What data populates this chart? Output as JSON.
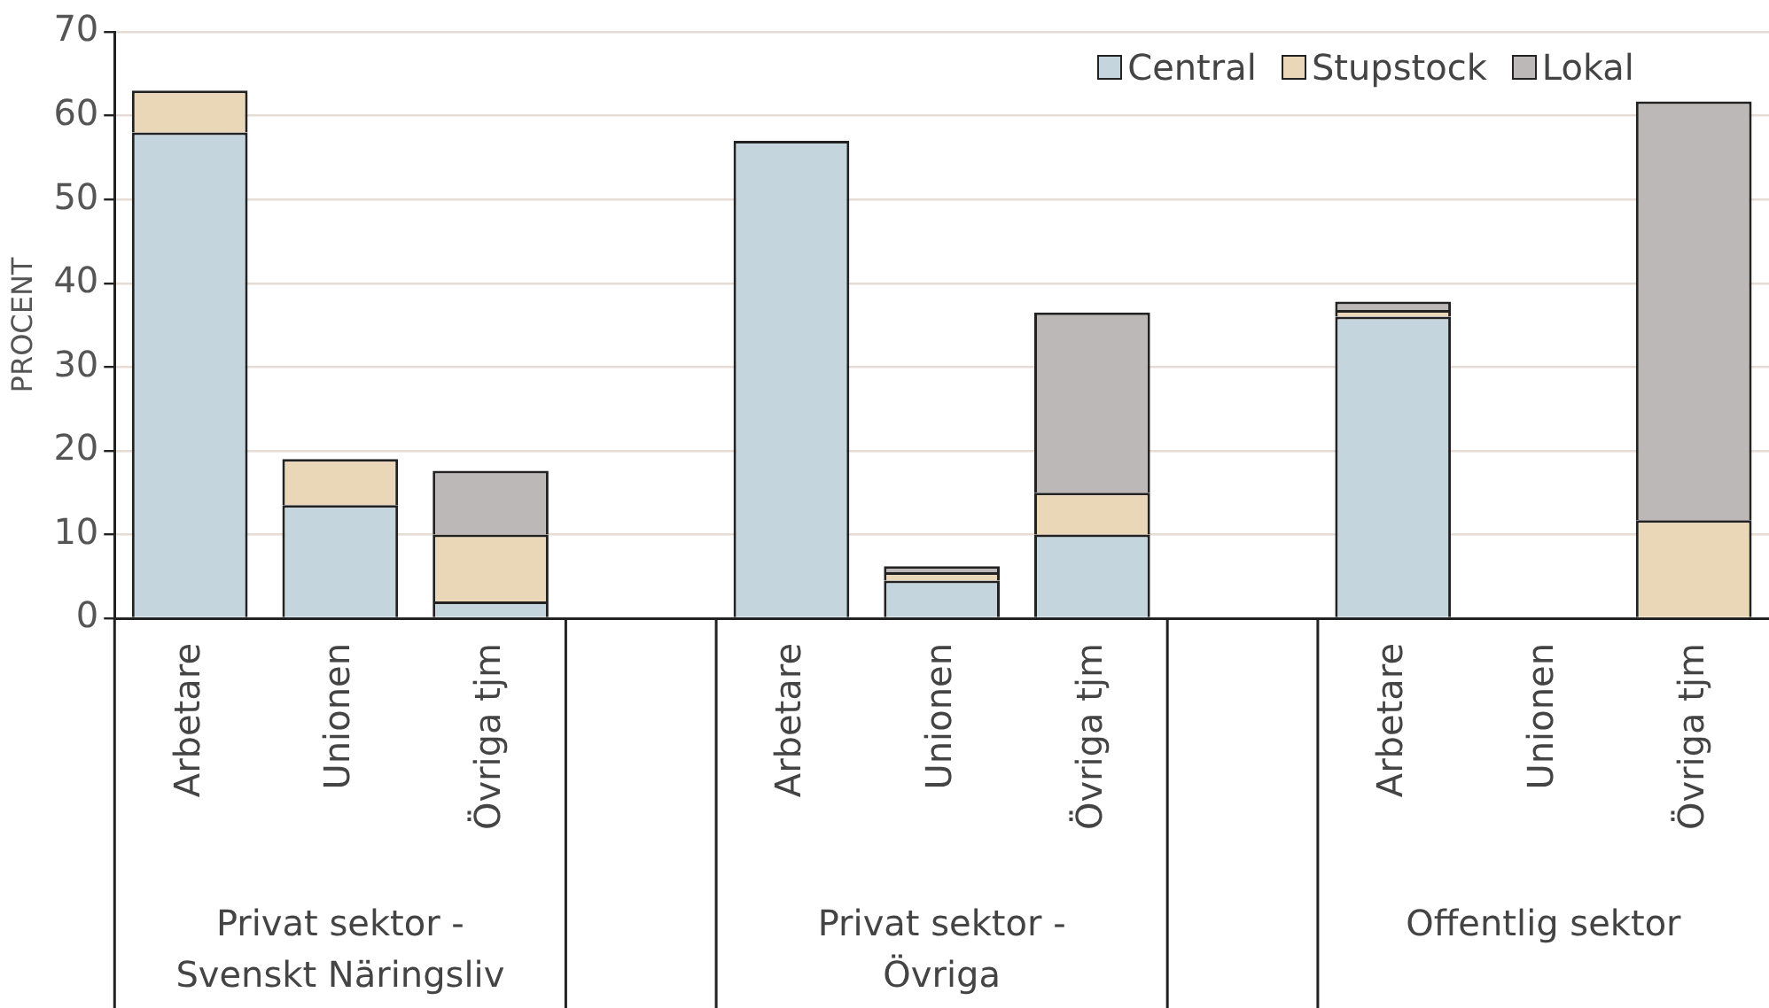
{
  "chart_data": {
    "type": "bar",
    "stacked": true,
    "ylabel": "PROCENT",
    "categories": [
      "Arbetare",
      "Unionen",
      "Övriga tjm",
      null,
      "Arbetare",
      "Unionen",
      "Övriga tjm",
      null,
      "Arbetare",
      "Unionen",
      "Övriga tjm"
    ],
    "annotations": [
      "Privat sektor - Svenskt Näringsliv",
      "Privat sektor - Övriga",
      "Offentlig sektor"
    ],
    "series": [
      {
        "name": "Central",
        "color": "#c5d5dd",
        "values": [
          58,
          13.5,
          2,
          null,
          57,
          4.5,
          10,
          null,
          36,
          null,
          null
        ]
      },
      {
        "name": "Stupstock",
        "color": "#ead7b8",
        "values": [
          5,
          5.5,
          8,
          null,
          0,
          1,
          5,
          null,
          0.8,
          null,
          11.7
        ]
      },
      {
        "name": "Lokal",
        "color": "#bdb8b8",
        "values": [
          0,
          0,
          7.6,
          null,
          0,
          0.7,
          21.5,
          null,
          1,
          null,
          50
        ]
      }
    ],
    "ylim": [
      0,
      70
    ],
    "yticks": [
      0,
      10,
      20,
      30,
      40,
      50,
      60,
      70
    ],
    "grid": "y",
    "legend": "top right"
  }
}
